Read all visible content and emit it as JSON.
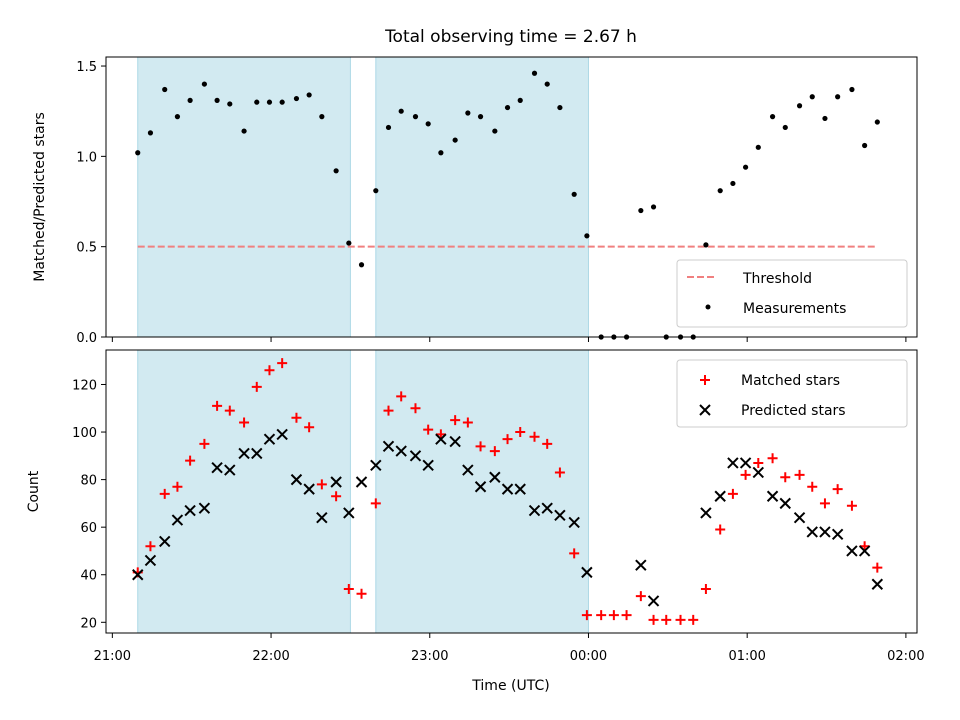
{
  "colors": {
    "shade": "#add8e6",
    "threshold": "#f08080",
    "measurement": "#000000",
    "matched": "#ff0000",
    "predicted": "#000000"
  },
  "chart_data": {
    "title": "Total observing time = 2.67 h",
    "xlabel": "Time (UTC)",
    "type": "scatter",
    "x_tick_labels": [
      "21:00",
      "22:00",
      "23:00",
      "00:00",
      "01:00",
      "02:00"
    ],
    "x_tick_hours": [
      21,
      22,
      23,
      24,
      25,
      26
    ],
    "xlim": [
      20.96,
      26.07
    ],
    "shaded_intervals": [
      [
        21.16,
        22.5
      ],
      [
        22.66,
        24.0
      ]
    ],
    "times": [
      21.16,
      21.24,
      21.33,
      21.41,
      21.49,
      21.58,
      21.66,
      21.74,
      21.83,
      21.91,
      21.99,
      22.07,
      22.16,
      22.24,
      22.32,
      22.41,
      22.49,
      22.57,
      22.66,
      22.74,
      22.82,
      22.91,
      22.99,
      23.07,
      23.16,
      23.24,
      23.32,
      23.41,
      23.49,
      23.57,
      23.66,
      23.74,
      23.82,
      23.91,
      23.99,
      24.08,
      24.16,
      24.24,
      24.33,
      24.41,
      24.49,
      24.58,
      24.66,
      24.74,
      24.83,
      24.91,
      24.99,
      25.07,
      25.16,
      25.24,
      25.33,
      25.41,
      25.49,
      25.57,
      25.66,
      25.74,
      25.82
    ],
    "panels": [
      {
        "type": "scatter",
        "ylabel": "Matched/Predicted stars",
        "ylim": [
          0,
          1.55
        ],
        "y_ticks": [
          0.0,
          0.5,
          1.0,
          1.5
        ],
        "y_tick_labels": [
          "0.0",
          "0.5",
          "1.0",
          "1.5"
        ],
        "threshold": {
          "value": 0.5,
          "x_range": [
            21.16,
            25.82
          ]
        },
        "legend_position": "lower-right",
        "legend": [
          "Threshold",
          "Measurements"
        ],
        "series": [
          {
            "name": "Measurements",
            "marker": "dot",
            "values": [
              1.02,
              1.13,
              1.37,
              1.22,
              1.31,
              1.4,
              1.31,
              1.29,
              1.14,
              1.3,
              1.3,
              1.3,
              1.32,
              1.34,
              1.22,
              0.92,
              0.52,
              0.4,
              0.81,
              1.16,
              1.25,
              1.22,
              1.18,
              1.02,
              1.09,
              1.24,
              1.22,
              1.14,
              1.27,
              1.31,
              1.46,
              1.4,
              1.27,
              0.79,
              0.56,
              0.0,
              0.0,
              0.0,
              0.7,
              0.72,
              0.0,
              0.0,
              0.0,
              0.51,
              0.81,
              0.85,
              0.94,
              1.05,
              1.22,
              1.16,
              1.28,
              1.33,
              1.21,
              1.33,
              1.37,
              1.06,
              1.19
            ]
          }
        ]
      },
      {
        "type": "scatter",
        "ylabel": "Count",
        "ylim": [
          15.5,
          134.5
        ],
        "y_ticks": [
          20,
          40,
          60,
          80,
          100,
          120
        ],
        "y_tick_labels": [
          "20",
          "40",
          "60",
          "80",
          "100",
          "120"
        ],
        "legend_position": "upper-right",
        "legend": [
          "Matched stars",
          "Predicted stars"
        ],
        "series": [
          {
            "name": "Matched stars",
            "marker": "plus",
            "values": [
              41,
              52,
              74,
              77,
              88,
              95,
              111,
              109,
              104,
              119,
              126,
              129,
              106,
              102,
              78,
              73,
              34,
              32,
              70,
              109,
              115,
              110,
              101,
              99,
              105,
              104,
              94,
              92,
              97,
              100,
              98,
              95,
              83,
              49,
              23,
              23,
              23,
              23,
              31,
              21,
              21,
              21,
              21,
              34,
              59,
              74,
              82,
              87,
              89,
              81,
              82,
              77,
              70,
              76,
              69,
              52,
              43
            ]
          },
          {
            "name": "Predicted stars",
            "marker": "x",
            "values": [
              40,
              46,
              54,
              63,
              67,
              68,
              85,
              84,
              91,
              91,
              97,
              99,
              80,
              76,
              64,
              79,
              66,
              79,
              86,
              94,
              92,
              90,
              86,
              97,
              96,
              84,
              77,
              81,
              76,
              76,
              67,
              68,
              65,
              62,
              41,
              null,
              null,
              null,
              44,
              29,
              null,
              null,
              null,
              66,
              73,
              87,
              87,
              83,
              73,
              70,
              64,
              58,
              58,
              57,
              50,
              50,
              36
            ]
          }
        ]
      }
    ]
  }
}
